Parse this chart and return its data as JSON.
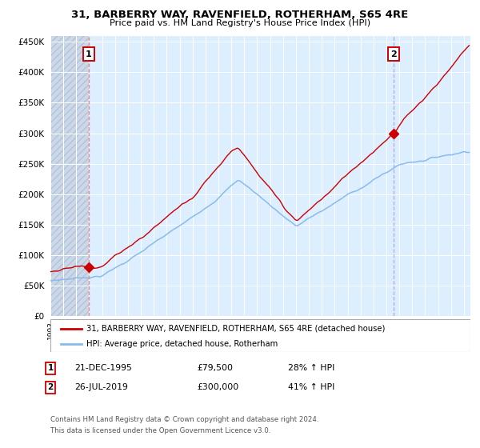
{
  "title_line1": "31, BARBERRY WAY, RAVENFIELD, ROTHERHAM, S65 4RE",
  "title_line2": "Price paid vs. HM Land Registry's House Price Index (HPI)",
  "legend_label_red": "31, BARBERRY WAY, RAVENFIELD, ROTHERHAM, S65 4RE (detached house)",
  "legend_label_blue": "HPI: Average price, detached house, Rotherham",
  "annotation1_date": "21-DEC-1995",
  "annotation1_price": "£79,500",
  "annotation1_hpi": "28% ↑ HPI",
  "annotation2_date": "26-JUL-2019",
  "annotation2_price": "£300,000",
  "annotation2_hpi": "41% ↑ HPI",
  "footer_line1": "Contains HM Land Registry data © Crown copyright and database right 2024.",
  "footer_line2": "This data is licensed under the Open Government Licence v3.0.",
  "sale1_year": 1995.97,
  "sale1_value": 79500,
  "sale2_year": 2019.57,
  "sale2_value": 300000,
  "hpi_color": "#88bbee",
  "red_color": "#cc0000",
  "vline1_color": "#ee8888",
  "vline2_color": "#aaaaee",
  "background_plot": "#ddeeff",
  "background_hatch_face": "#ccd8e8",
  "grid_color": "#ffffff",
  "ylim": [
    0,
    460000
  ],
  "xlim_start": 1993.0,
  "xlim_end": 2025.5
}
